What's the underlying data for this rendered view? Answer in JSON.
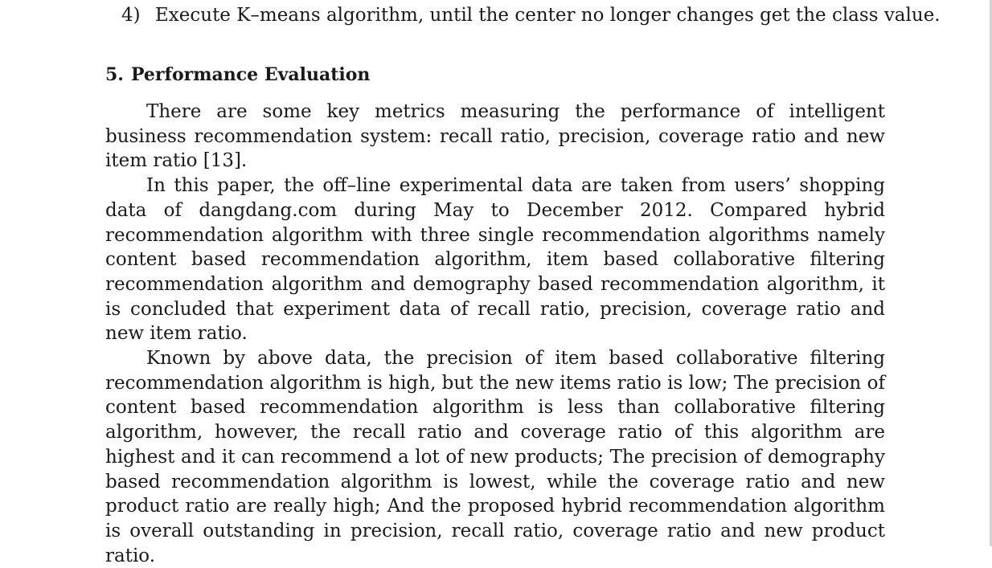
{
  "list_item": {
    "number": "4)",
    "text": "Execute K–means algorithm, until the center no longer changes get the class value."
  },
  "section": {
    "number": "5.",
    "title": "Performance Evaluation"
  },
  "paragraphs": [
    "There are some key metrics measuring the performance of intelligent business recommendation system: recall ratio, precision, coverage ratio and new item ratio [13].",
    "In this paper, the off–line experimental data are taken from users’ shopping data of dangdang.com during May to December 2012. Compared hybrid recommendation algorithm with three single recommendation algorithms namely content based recommendation algorithm, item based collaborative filtering recommendation algorithm and demography based recommendation algorithm, it is concluded that experiment data of recall ratio, precision, coverage ratio and new item ratio.",
    "Known by above data, the precision of item based collaborative filtering recommendation algorithm is high, but the new items ratio is low; The precision of content based recommendation algorithm is less than collaborative filtering algorithm, however, the recall ratio and coverage ratio of this algorithm are highest and it can recommend a lot of new products; The precision of demography based recommendation algorithm is lowest, while the coverage ratio and new product ratio are really high; And the proposed hybrid recommendation algorithm is overall outstanding in precision, recall ratio, coverage ratio and new product ratio."
  ]
}
